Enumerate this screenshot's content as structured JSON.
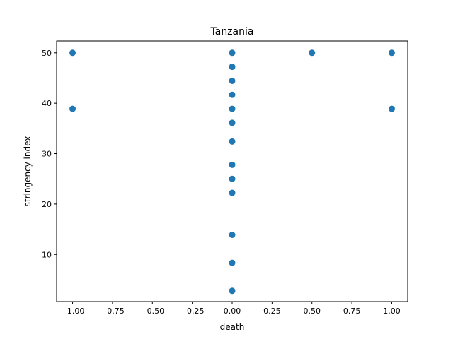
{
  "chart_data": {
    "type": "scatter",
    "title": "Tanzania",
    "xlabel": "death",
    "ylabel": "stringency index",
    "xlim": [
      -1.1,
      1.1
    ],
    "ylim": [
      0.65,
      52.35
    ],
    "x_ticks": [
      -1.0,
      -0.75,
      -0.5,
      -0.25,
      0.0,
      0.25,
      0.5,
      0.75,
      1.0
    ],
    "x_tick_labels": [
      "−1.00",
      "−0.75",
      "−0.50",
      "−0.25",
      "0.00",
      "0.25",
      "0.50",
      "0.75",
      "1.00"
    ],
    "y_ticks": [
      10,
      20,
      30,
      40,
      50
    ],
    "y_tick_labels": [
      "10",
      "20",
      "30",
      "40",
      "50"
    ],
    "marker_color": "#1f77b4",
    "grid": false,
    "points": [
      {
        "x": -1.0,
        "y": 50.0
      },
      {
        "x": -1.0,
        "y": 38.89
      },
      {
        "x": 0.0,
        "y": 50.0
      },
      {
        "x": 0.0,
        "y": 47.22
      },
      {
        "x": 0.0,
        "y": 44.44
      },
      {
        "x": 0.0,
        "y": 41.67
      },
      {
        "x": 0.0,
        "y": 38.89
      },
      {
        "x": 0.0,
        "y": 36.11
      },
      {
        "x": 0.0,
        "y": 32.41
      },
      {
        "x": 0.0,
        "y": 27.78
      },
      {
        "x": 0.0,
        "y": 25.0
      },
      {
        "x": 0.0,
        "y": 22.22
      },
      {
        "x": 0.0,
        "y": 13.89
      },
      {
        "x": 0.0,
        "y": 8.33
      },
      {
        "x": 0.0,
        "y": 2.78
      },
      {
        "x": 0.5,
        "y": 50.0
      },
      {
        "x": 1.0,
        "y": 50.0
      },
      {
        "x": 1.0,
        "y": 38.89
      }
    ]
  }
}
